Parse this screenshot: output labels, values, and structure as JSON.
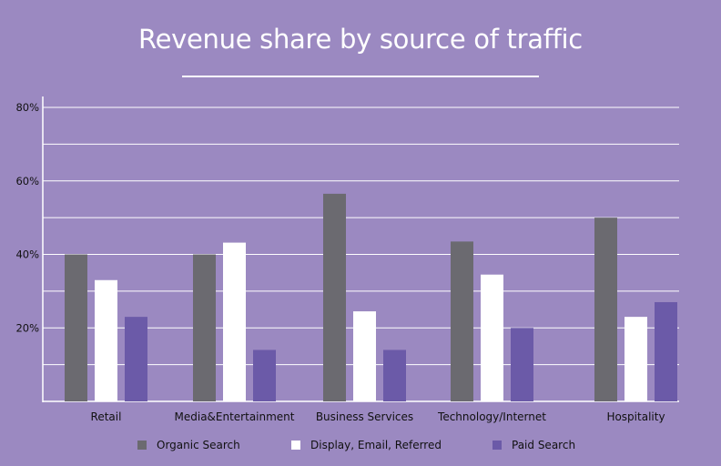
{
  "colors": {
    "background": "#9b89c1",
    "grid": "#ffffff",
    "axis": "#ffffff"
  },
  "chart_data": {
    "type": "bar",
    "title": "Revenue share by source of traffic",
    "xlabel": "",
    "ylabel": "",
    "ylim": [
      0,
      80
    ],
    "grid_step": 10,
    "yticks": [
      {
        "value": 20,
        "label": "20%"
      },
      {
        "value": 40,
        "label": "40%"
      },
      {
        "value": 60,
        "label": "60%"
      },
      {
        "value": 80,
        "label": "80%"
      }
    ],
    "categories": [
      "Retail",
      "Media&Entertainment",
      "Business Services",
      "Technology/Internet",
      "Hospitality"
    ],
    "series": [
      {
        "name": "Organic Search",
        "color": "#6b6a70",
        "values": [
          40,
          40,
          56.5,
          43.5,
          50
        ]
      },
      {
        "name": "Display, Email, Referred",
        "color": "#ffffff",
        "values": [
          33,
          43.2,
          24.5,
          34.5,
          23
        ]
      },
      {
        "name": "Paid Search",
        "color": "#6b5aa8",
        "values": [
          23,
          14,
          14,
          20,
          27
        ]
      }
    ],
    "legend_position": "bottom"
  }
}
